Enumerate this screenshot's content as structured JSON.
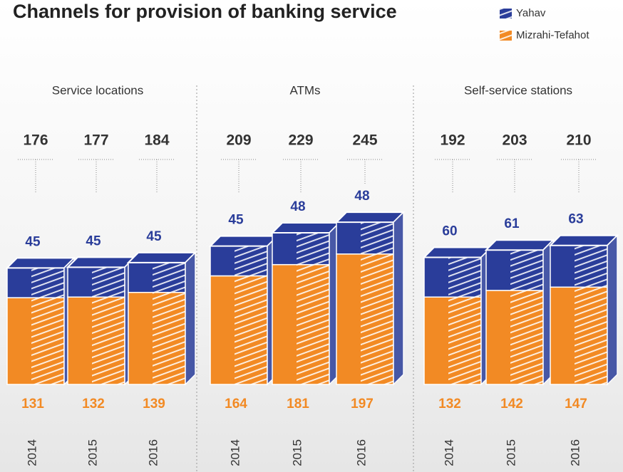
{
  "title": "Channels for provision of banking service",
  "chart_data": [
    {
      "type": "bar",
      "stacked": true,
      "title": "Service locations",
      "categories": [
        "2014",
        "2015",
        "2016"
      ],
      "series": [
        {
          "name": "Mizrahi-Tefahot",
          "color": "#f28a24",
          "values": [
            131,
            132,
            139
          ]
        },
        {
          "name": "Yahav",
          "color": "#2a3d9a",
          "values": [
            45,
            45,
            45
          ]
        }
      ],
      "totals": [
        176,
        177,
        184
      ]
    },
    {
      "type": "bar",
      "stacked": true,
      "title": "ATMs",
      "categories": [
        "2014",
        "2015",
        "2016"
      ],
      "series": [
        {
          "name": "Mizrahi-Tefahot",
          "color": "#f28a24",
          "values": [
            164,
            181,
            197
          ]
        },
        {
          "name": "Yahav",
          "color": "#2a3d9a",
          "values": [
            45,
            48,
            48
          ]
        }
      ],
      "totals": [
        209,
        229,
        245
      ]
    },
    {
      "type": "bar",
      "stacked": true,
      "title": "Self-service stations",
      "categories": [
        "2014",
        "2015",
        "2016"
      ],
      "series": [
        {
          "name": "Mizrahi-Tefahot",
          "color": "#f28a24",
          "values": [
            132,
            142,
            147
          ]
        },
        {
          "name": "Yahav",
          "color": "#2a3d9a",
          "values": [
            60,
            61,
            63
          ]
        }
      ],
      "totals": [
        192,
        203,
        210
      ]
    }
  ]
}
